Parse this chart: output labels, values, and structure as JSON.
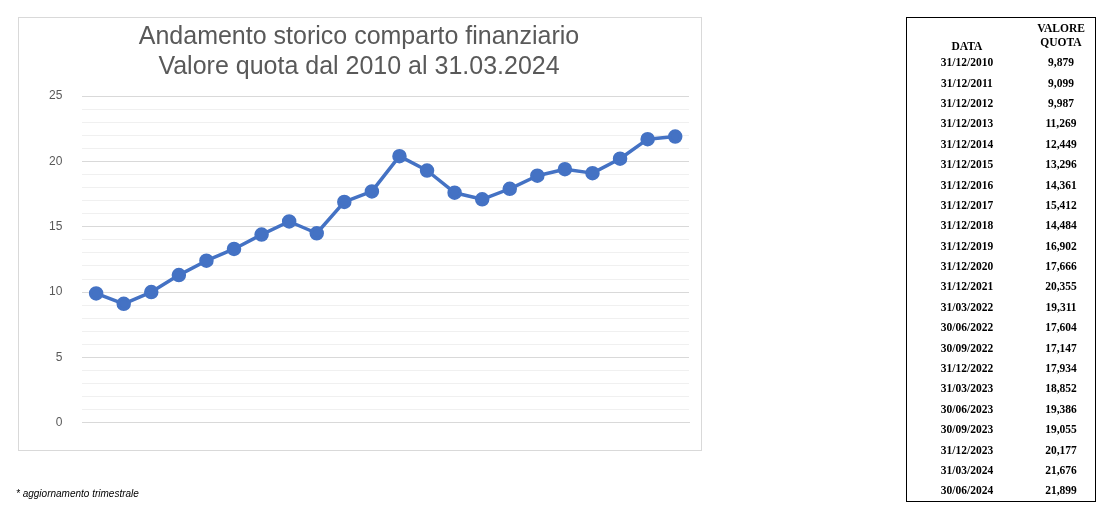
{
  "chart_data": [
    {
      "type": "line",
      "title": [
        "Andamento storico comparto finanziario",
        "Valore quota dal 2010 al 31.03.2024"
      ],
      "categories": [
        null,
        null,
        null,
        null,
        null,
        null,
        null,
        null,
        null,
        null,
        null,
        null,
        null,
        null,
        null,
        null,
        null,
        null,
        null,
        null,
        null,
        null
      ],
      "series": [
        {
          "color": "#4472c4",
          "values": [
            9.9,
            9.1,
            10.0,
            11.3,
            12.4,
            13.3,
            14.4,
            15.4,
            14.5,
            16.9,
            17.7,
            20.4,
            19.3,
            17.6,
            17.1,
            17.9,
            18.9,
            19.4,
            19.1,
            20.2,
            21.7,
            21.9
          ]
        }
      ],
      "ylim": [
        0,
        25
      ],
      "yticks": [
        0,
        {
          "value": 1,
          "label": null
        },
        {
          "value": 2,
          "label": null
        },
        {
          "value": 3,
          "label": null
        },
        {
          "value": 4,
          "label": null
        },
        5,
        {
          "value": 6,
          "label": null
        },
        {
          "value": 7,
          "label": null
        },
        {
          "value": 8,
          "label": null
        },
        {
          "value": 9,
          "label": null
        },
        10,
        {
          "value": 11,
          "label": null
        },
        {
          "value": 12,
          "label": null
        },
        {
          "value": 13,
          "label": null
        },
        {
          "value": 14,
          "label": null
        },
        15,
        {
          "value": 16,
          "label": null
        },
        {
          "value": 17,
          "label": null
        },
        {
          "value": 18,
          "label": null
        },
        {
          "value": 19,
          "label": null
        },
        20,
        {
          "value": 21,
          "label": null
        },
        {
          "value": 22,
          "label": null
        },
        {
          "value": 23,
          "label": null
        },
        {
          "value": 24,
          "label": null
        },
        25
      ],
      "grid": "y",
      "tick_labels": "y",
      "marker": "circle",
      "line_style": "solid",
      "legend": false,
      "annotations": [
        "* aggiornamento trimestrale"
      ]
    },
    {
      "type": "other",
      "annotations": [
        "DATA",
        "VALORE QUOTA",
        "31/12/2010",
        "9,879",
        "31/12/2011",
        "9,099",
        "31/12/2012",
        "9,987",
        "31/12/2013",
        "11,269",
        "31/12/2014",
        "12,449",
        "31/12/2015",
        "13,296",
        "31/12/2016",
        "14,361",
        "31/12/2017",
        "15,412",
        "31/12/2018",
        "14,484",
        "31/12/2019",
        "16,902",
        "31/12/2020",
        "17,666",
        "31/12/2021",
        "20,355",
        "31/03/2022",
        "19,311",
        "30/06/2022",
        "17,604",
        "30/09/2022",
        "17,147",
        "31/12/2022",
        "17,934",
        "31/03/2023",
        "18,852",
        "30/06/2023",
        "19,386",
        "30/09/2023",
        "19,055",
        "31/12/2023",
        "20,177",
        "31/03/2024",
        "21,676",
        "30/06/2024",
        "21,899"
      ]
    }
  ]
}
